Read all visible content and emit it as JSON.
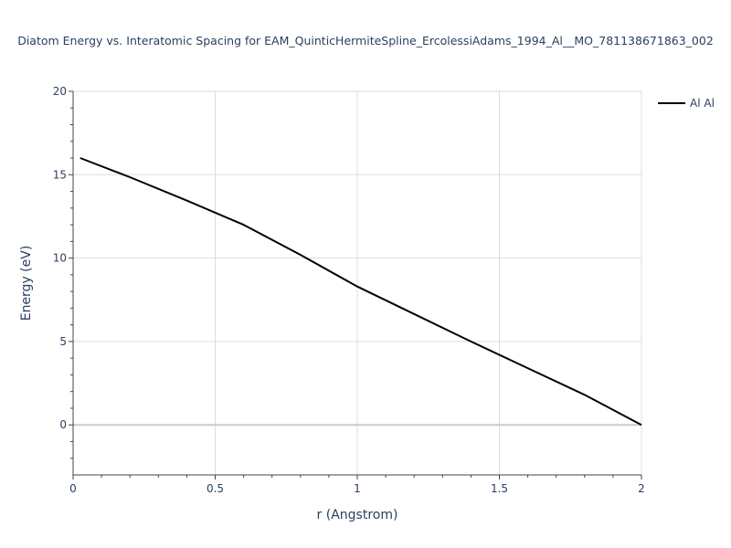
{
  "chart_data": {
    "type": "line",
    "title": "Diatom Energy vs. Interatomic Spacing for EAM_QuinticHermiteSpline_ErcolessiAdams_1994_Al__MO_781138671863_002",
    "xlabel": "r (Angstrom)",
    "ylabel": "Energy (eV)",
    "xlim": [
      0,
      2
    ],
    "ylim": [
      -3,
      20
    ],
    "xticks": [
      0,
      0.5,
      1,
      1.5,
      2
    ],
    "xtick_labels": [
      "0",
      "0.5",
      "1",
      "1.5",
      "2"
    ],
    "yticks": [
      0,
      5,
      10,
      15,
      20
    ],
    "ytick_labels": [
      "0",
      "5",
      "10",
      "15",
      "20"
    ],
    "grid": true,
    "legend_position": "top-right",
    "series": [
      {
        "name": "Al Al",
        "color": "#000000",
        "x": [
          0.025,
          0.2,
          0.4,
          0.6,
          0.8,
          1.0,
          1.2,
          1.4,
          1.6,
          1.8,
          2.0
        ],
        "y": [
          16.0,
          14.85,
          13.45,
          12.0,
          10.2,
          8.3,
          6.65,
          5.0,
          3.4,
          1.8,
          0.0
        ]
      }
    ]
  }
}
